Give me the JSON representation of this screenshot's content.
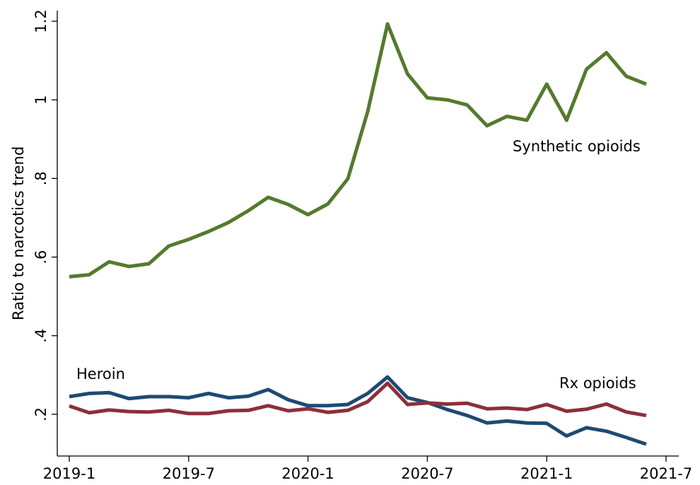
{
  "chart_data": {
    "type": "line",
    "title": "",
    "xlabel": "",
    "ylabel": "Ratio to narcotics trend",
    "xlim": [
      "2019-1",
      "2021-7"
    ],
    "ylim": [
      0.1,
      1.2
    ],
    "grid": false,
    "legend": "none",
    "x_ticks": [
      "2019-1",
      "2019-7",
      "2020-1",
      "2020-7",
      "2021-1",
      "2021-7"
    ],
    "y_ticks": [
      0.2,
      0.4,
      0.6,
      0.8,
      1.0,
      1.2
    ],
    "y_tick_labels": [
      ".2",
      ".4",
      ".6",
      ".8",
      "1",
      "1.2"
    ],
    "x": [
      "2019-1",
      "2019-2",
      "2019-3",
      "2019-4",
      "2019-5",
      "2019-6",
      "2019-7",
      "2019-8",
      "2019-9",
      "2019-10",
      "2019-11",
      "2019-12",
      "2020-1",
      "2020-2",
      "2020-3",
      "2020-4",
      "2020-5",
      "2020-6",
      "2020-7",
      "2020-8",
      "2020-9",
      "2020-10",
      "2020-11",
      "2020-12",
      "2021-1",
      "2021-2",
      "2021-3",
      "2021-4",
      "2021-5",
      "2021-6"
    ],
    "series": [
      {
        "name": "Synthetic opioids",
        "color": "#557a2e",
        "values": [
          0.55,
          0.555,
          0.588,
          0.576,
          0.583,
          0.628,
          0.645,
          0.665,
          0.688,
          0.718,
          0.752,
          0.734,
          0.708,
          0.735,
          0.799,
          0.97,
          1.193,
          1.066,
          1.005,
          1.0,
          0.987,
          0.934,
          0.958,
          0.948,
          1.04,
          0.948,
          1.078,
          1.12,
          1.06,
          1.04
        ]
      },
      {
        "name": "Heroin",
        "color": "#1e4a73",
        "values": [
          0.245,
          0.253,
          0.255,
          0.24,
          0.245,
          0.245,
          0.242,
          0.253,
          0.242,
          0.246,
          0.263,
          0.237,
          0.222,
          0.222,
          0.225,
          0.253,
          0.295,
          0.242,
          0.23,
          0.212,
          0.197,
          0.178,
          0.183,
          0.178,
          0.177,
          0.145,
          0.166,
          0.157,
          0.141,
          0.124
        ]
      },
      {
        "name": "Rx opioids",
        "color": "#8b3039",
        "values": [
          0.221,
          0.204,
          0.211,
          0.207,
          0.206,
          0.21,
          0.202,
          0.202,
          0.209,
          0.21,
          0.222,
          0.209,
          0.214,
          0.205,
          0.21,
          0.232,
          0.279,
          0.225,
          0.229,
          0.226,
          0.228,
          0.214,
          0.216,
          0.212,
          0.225,
          0.208,
          0.213,
          0.226,
          0.206,
          0.197
        ]
      }
    ],
    "annotations": [
      "Synthetic opioids",
      "Heroin",
      "Rx opioids"
    ]
  }
}
